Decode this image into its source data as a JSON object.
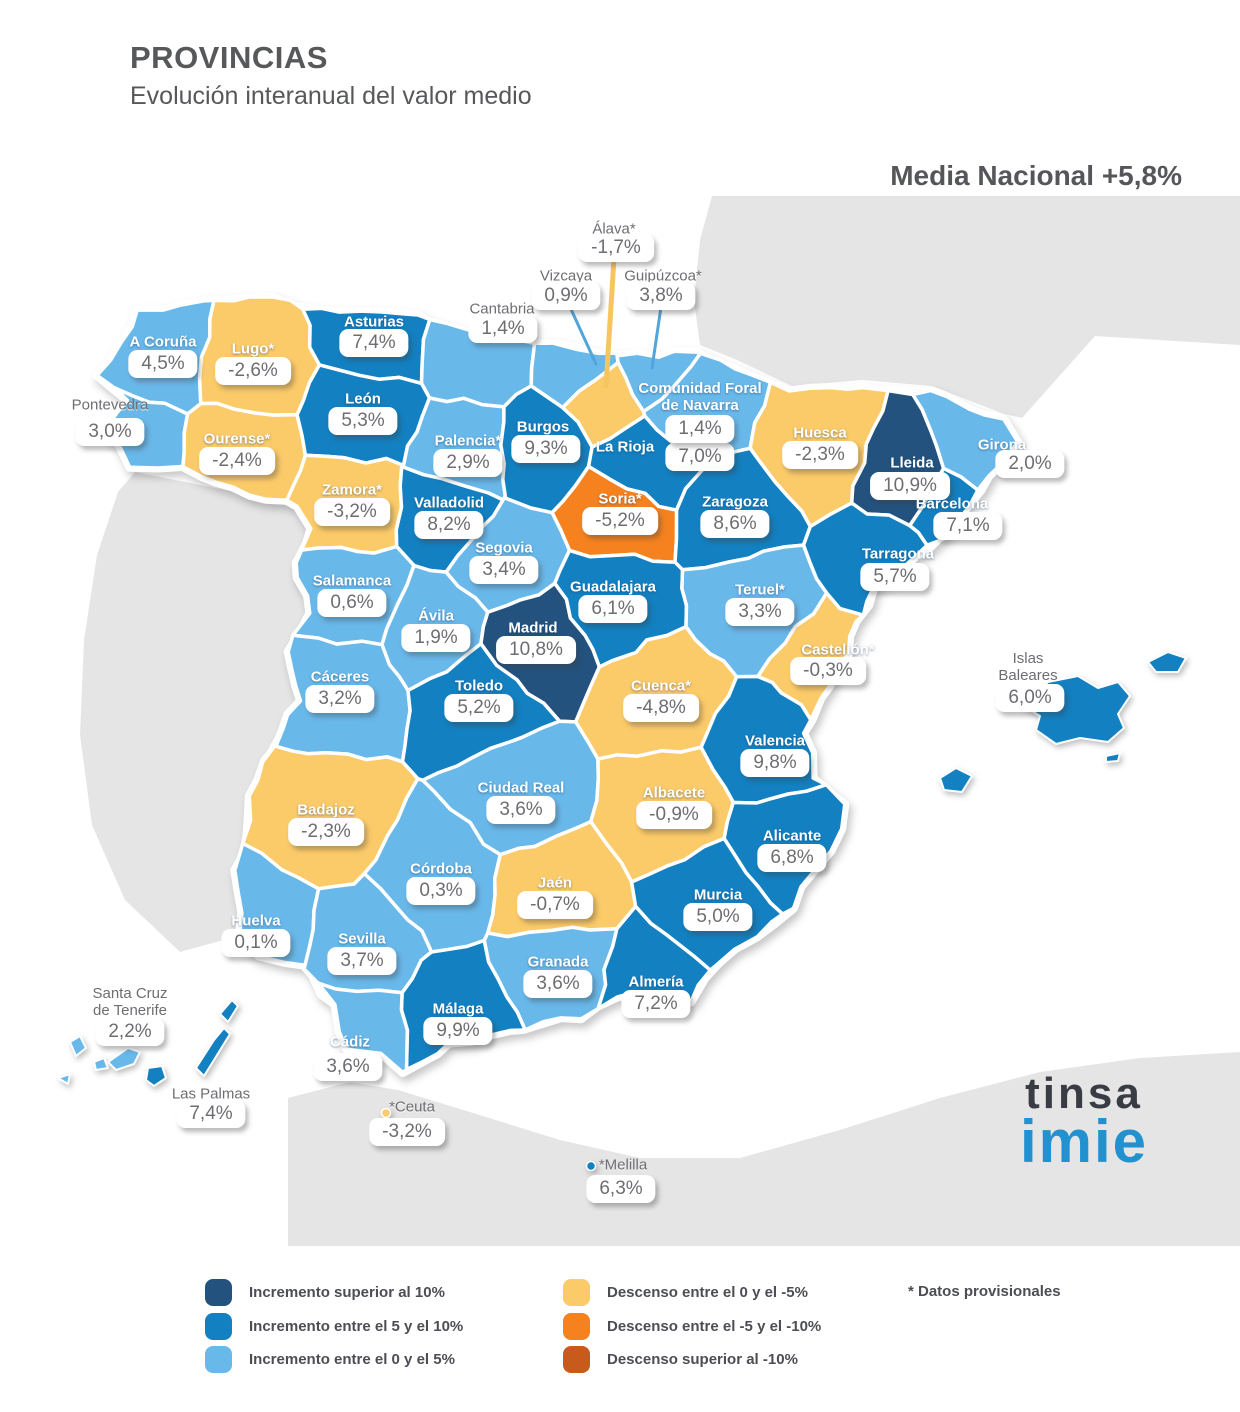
{
  "header": {
    "title": "PROVINCIAS",
    "subtitle": "Evolución interanual del valor medio",
    "national_average": "Media Nacional +5,8%"
  },
  "map": {
    "categories": {
      "inc_gt10": {
        "color": "#23527e"
      },
      "inc_5_10": {
        "color": "#1380c1"
      },
      "inc_0_5": {
        "color": "#69b8ea"
      },
      "dec_0_5": {
        "color": "#fbca69"
      },
      "dec_5_10": {
        "color": "#f6821f"
      },
      "dec_gt10": {
        "color": "#c85a1b"
      }
    },
    "callout_colors": {
      "blue": "#52a5da",
      "yellow": "#f7c55e"
    },
    "provinces": [
      {
        "name": "A Coruña",
        "value": "4,5%",
        "category": "inc_0_5",
        "seed": [
          158,
          352
        ],
        "label": [
          163,
          343
        ]
      },
      {
        "name": "Lugo*",
        "value": "-2,6%",
        "category": "dec_0_5",
        "seed": [
          252,
          365
        ],
        "label": [
          253,
          350
        ]
      },
      {
        "name": "Pontevedra",
        "value": "3,0%",
        "category": "inc_0_5",
        "seed": [
          126,
          444
        ],
        "label": [
          110,
          406
        ],
        "badge": [
          110,
          432
        ],
        "outside": true
      },
      {
        "name": "Ourense*",
        "value": "-2,4%",
        "category": "dec_0_5",
        "seed": [
          238,
          452
        ],
        "label": [
          237,
          440
        ]
      },
      {
        "name": "Asturias",
        "value": "7,4%",
        "category": "inc_5_10",
        "seed": [
          375,
          338
        ],
        "label": [
          374,
          323
        ],
        "badge": [
          374,
          343
        ]
      },
      {
        "name": "Cantabria",
        "value": "1,4%",
        "category": "inc_0_5",
        "seed": [
          478,
          352
        ],
        "label": [
          502,
          310
        ],
        "badge": [
          503,
          329
        ],
        "outside": true
      },
      {
        "name": "Vizcaya",
        "value": "0,9%",
        "category": "inc_0_5",
        "seed": [
          588,
          366
        ],
        "label": [
          566,
          277
        ],
        "badge": [
          566,
          296
        ],
        "outside": true,
        "callout": {
          "from": [
            570,
            307
          ],
          "to": [
            596,
            364
          ],
          "color": "blue",
          "width": 3
        }
      },
      {
        "name": "Guipúzcoa*",
        "value": "3,8%",
        "category": "inc_0_5",
        "seed": [
          646,
          370
        ],
        "label": [
          663,
          277
        ],
        "badge": [
          661,
          296
        ],
        "outside": true,
        "callout": {
          "from": [
            661,
            307
          ],
          "to": [
            652,
            368
          ],
          "color": "blue",
          "width": 3
        }
      },
      {
        "name": "Álava*",
        "value": "-1,7%",
        "category": "dec_0_5",
        "seed": [
          608,
          392
        ],
        "label": [
          614,
          230
        ],
        "badge": [
          616,
          248
        ],
        "outside": true,
        "callout": {
          "from": [
            614,
            258
          ],
          "to": [
            606,
            386
          ],
          "color": "yellow",
          "width": 5
        }
      },
      {
        "name": "León",
        "value": "5,3%",
        "category": "inc_5_10",
        "seed": [
          362,
          412
        ],
        "label": [
          363,
          400
        ]
      },
      {
        "name": "Palencia*",
        "value": "2,9%",
        "category": "inc_0_5",
        "seed": [
          468,
          452
        ],
        "label": [
          468,
          442
        ]
      },
      {
        "name": "Burgos",
        "value": "9,3%",
        "category": "inc_5_10",
        "seed": [
          540,
          448
        ],
        "label": [
          543,
          428
        ],
        "badge": [
          546,
          449
        ]
      },
      {
        "name": "La Rioja",
        "value": "7,0%",
        "category": "inc_5_10",
        "seed": [
          643,
          464
        ],
        "label": [
          625,
          448
        ],
        "badge": [
          700,
          457
        ]
      },
      {
        "name": "Comunidad Foral\nde Navarra",
        "value": "1,4%",
        "category": "inc_0_5",
        "seed": [
          688,
          412
        ],
        "label": [
          700,
          398
        ],
        "badge": [
          700,
          429
        ]
      },
      {
        "name": "Huesca",
        "value": "-2,3%",
        "category": "dec_0_5",
        "seed": [
          818,
          450
        ],
        "label": [
          820,
          434
        ]
      },
      {
        "name": "Lleida",
        "value": "10,9%",
        "category": "inc_gt10",
        "seed": [
          908,
          478
        ],
        "label": [
          912,
          464
        ],
        "badge": [
          910,
          486
        ]
      },
      {
        "name": "Girona",
        "value": "2,0%",
        "category": "inc_0_5",
        "seed": [
          978,
          452
        ],
        "label": [
          1002,
          446
        ],
        "badge": [
          1030,
          464
        ]
      },
      {
        "name": "Barcelona",
        "value": "7,1%",
        "category": "inc_5_10",
        "seed": [
          948,
          505
        ],
        "label": [
          952,
          505
        ],
        "badge": [
          968,
          526
        ]
      },
      {
        "name": "Zamora*",
        "value": "-3,2%",
        "category": "dec_0_5",
        "seed": [
          352,
          506
        ],
        "label": [
          352,
          491
        ]
      },
      {
        "name": "Valladolid",
        "value": "8,2%",
        "category": "inc_5_10",
        "seed": [
          448,
          514
        ],
        "label": [
          449,
          504
        ]
      },
      {
        "name": "Soria*",
        "value": "-5,2%",
        "category": "dec_5_10",
        "seed": [
          618,
          514
        ],
        "label": [
          620,
          500
        ]
      },
      {
        "name": "Zaragoza",
        "value": "8,6%",
        "category": "inc_5_10",
        "seed": [
          735,
          514
        ],
        "label": [
          735,
          503
        ]
      },
      {
        "name": "Tarragona",
        "value": "5,7%",
        "category": "inc_5_10",
        "seed": [
          882,
          560
        ],
        "label": [
          898,
          555
        ],
        "badge": [
          895,
          577
        ]
      },
      {
        "name": "Segovia",
        "value": "3,4%",
        "category": "inc_0_5",
        "seed": [
          504,
          561
        ],
        "label": [
          504,
          549
        ]
      },
      {
        "name": "Salamanca",
        "value": "0,6%",
        "category": "inc_0_5",
        "seed": [
          352,
          594
        ],
        "label": [
          352,
          582
        ]
      },
      {
        "name": "Ávila",
        "value": "1,9%",
        "category": "inc_0_5",
        "seed": [
          436,
          628
        ],
        "label": [
          436,
          617
        ]
      },
      {
        "name": "Madrid",
        "value": "10,8%",
        "category": "inc_gt10",
        "seed": [
          534,
          640
        ],
        "label": [
          533,
          629
        ],
        "badge": [
          536,
          650
        ]
      },
      {
        "name": "Guadalajara",
        "value": "6,1%",
        "category": "inc_5_10",
        "seed": [
          613,
          598
        ],
        "label": [
          613,
          588
        ]
      },
      {
        "name": "Teruel*",
        "value": "3,3%",
        "category": "inc_0_5",
        "seed": [
          757,
          602
        ],
        "label": [
          760,
          591
        ]
      },
      {
        "name": "Castellón*",
        "value": "-0,3%",
        "category": "dec_0_5",
        "seed": [
          828,
          664
        ],
        "label": [
          838,
          651
        ],
        "badge": [
          828,
          671
        ]
      },
      {
        "name": "Cáceres",
        "value": "3,2%",
        "category": "inc_0_5",
        "seed": [
          340,
          690
        ],
        "label": [
          340,
          678
        ]
      },
      {
        "name": "Toledo",
        "value": "5,2%",
        "category": "inc_5_10",
        "seed": [
          478,
          698
        ],
        "label": [
          479,
          687
        ]
      },
      {
        "name": "Cuenca*",
        "value": "-4,8%",
        "category": "dec_0_5",
        "seed": [
          660,
          698
        ],
        "label": [
          661,
          687
        ]
      },
      {
        "name": "Valencia",
        "value": "9,8%",
        "category": "inc_5_10",
        "seed": [
          768,
          748
        ],
        "label": [
          775,
          742
        ]
      },
      {
        "name": "Badajoz",
        "value": "-2,3%",
        "category": "dec_0_5",
        "seed": [
          325,
          818
        ],
        "label": [
          326,
          811
        ]
      },
      {
        "name": "Ciudad Real",
        "value": "3,6%",
        "category": "inc_0_5",
        "seed": [
          520,
          796
        ],
        "label": [
          521,
          789
        ]
      },
      {
        "name": "Albacete",
        "value": "-0,9%",
        "category": "dec_0_5",
        "seed": [
          670,
          805
        ],
        "label": [
          674,
          794
        ]
      },
      {
        "name": "Alicante",
        "value": "6,8%",
        "category": "inc_5_10",
        "seed": [
          788,
          844
        ],
        "label": [
          792,
          837
        ]
      },
      {
        "name": "Córdoba",
        "value": "0,3%",
        "category": "inc_0_5",
        "seed": [
          440,
          878
        ],
        "label": [
          441,
          870
        ]
      },
      {
        "name": "Jaén",
        "value": "-0,7%",
        "category": "dec_0_5",
        "seed": [
          552,
          892
        ],
        "label": [
          555,
          884
        ]
      },
      {
        "name": "Murcia",
        "value": "5,0%",
        "category": "inc_5_10",
        "seed": [
          714,
          906
        ],
        "label": [
          718,
          896
        ]
      },
      {
        "name": "Huelva",
        "value": "0,1%",
        "category": "inc_0_5",
        "seed": [
          258,
          928
        ],
        "label": [
          256,
          922
        ]
      },
      {
        "name": "Sevilla",
        "value": "3,7%",
        "category": "inc_0_5",
        "seed": [
          360,
          948
        ],
        "label": [
          362,
          940
        ]
      },
      {
        "name": "Granada",
        "value": "3,6%",
        "category": "inc_0_5",
        "seed": [
          556,
          970
        ],
        "label": [
          558,
          963
        ]
      },
      {
        "name": "Almería",
        "value": "7,2%",
        "category": "inc_5_10",
        "seed": [
          652,
          988
        ],
        "label": [
          656,
          983
        ]
      },
      {
        "name": "Málaga",
        "value": "9,9%",
        "category": "inc_5_10",
        "seed": [
          455,
          1016
        ],
        "label": [
          458,
          1010
        ]
      },
      {
        "name": "Cádiz",
        "value": "3,6%",
        "category": "inc_0_5",
        "seed": [
          352,
          1028
        ],
        "label": [
          350,
          1043
        ],
        "badge": [
          348,
          1067
        ]
      },
      {
        "name": "Islas\nBaleares",
        "value": "6,0%",
        "category": "inc_5_10",
        "label": [
          1028,
          668
        ],
        "badge": [
          1030,
          698
        ],
        "outside": true,
        "shapes": "baleares"
      },
      {
        "name": "Santa Cruz\nde Tenerife",
        "value": "2,2%",
        "category": "inc_0_5",
        "label": [
          130,
          1003
        ],
        "badge": [
          130,
          1032
        ],
        "outside": true,
        "shapes": "tenerife"
      },
      {
        "name": "Las Palmas",
        "value": "7,4%",
        "category": "inc_5_10",
        "label": [
          211,
          1095
        ],
        "badge": [
          211,
          1114
        ],
        "outside": true,
        "shapes": "laspalmas"
      },
      {
        "name": "*Ceuta",
        "value": "-3,2%",
        "category": "dec_0_5",
        "label": [
          412,
          1108
        ],
        "badge": [
          407,
          1132
        ],
        "outside": true,
        "dot": [
          386,
          1113
        ]
      },
      {
        "name": "*Melilla",
        "value": "6,3%",
        "category": "inc_5_10",
        "label": [
          623,
          1166
        ],
        "badge": [
          621,
          1189
        ],
        "outside": true,
        "dot": [
          591,
          1166
        ]
      }
    ]
  },
  "legend": {
    "note": "* Datos provisionales",
    "items": [
      {
        "category": "inc_gt10",
        "label": "Incremento superior al 10%"
      },
      {
        "category": "inc_5_10",
        "label": "Incremento entre el 5 y el 10%"
      },
      {
        "category": "inc_0_5",
        "label": "Incremento entre el 0 y el 5%"
      },
      {
        "category": "dec_0_5",
        "label": "Descenso entre el 0 y el -5%"
      },
      {
        "category": "dec_5_10",
        "label": "Descenso entre el -5 y el -10%"
      },
      {
        "category": "dec_gt10",
        "label": "Descenso superior al -10%"
      }
    ]
  },
  "logo": {
    "top": "tinsa",
    "bottom": "imie"
  }
}
